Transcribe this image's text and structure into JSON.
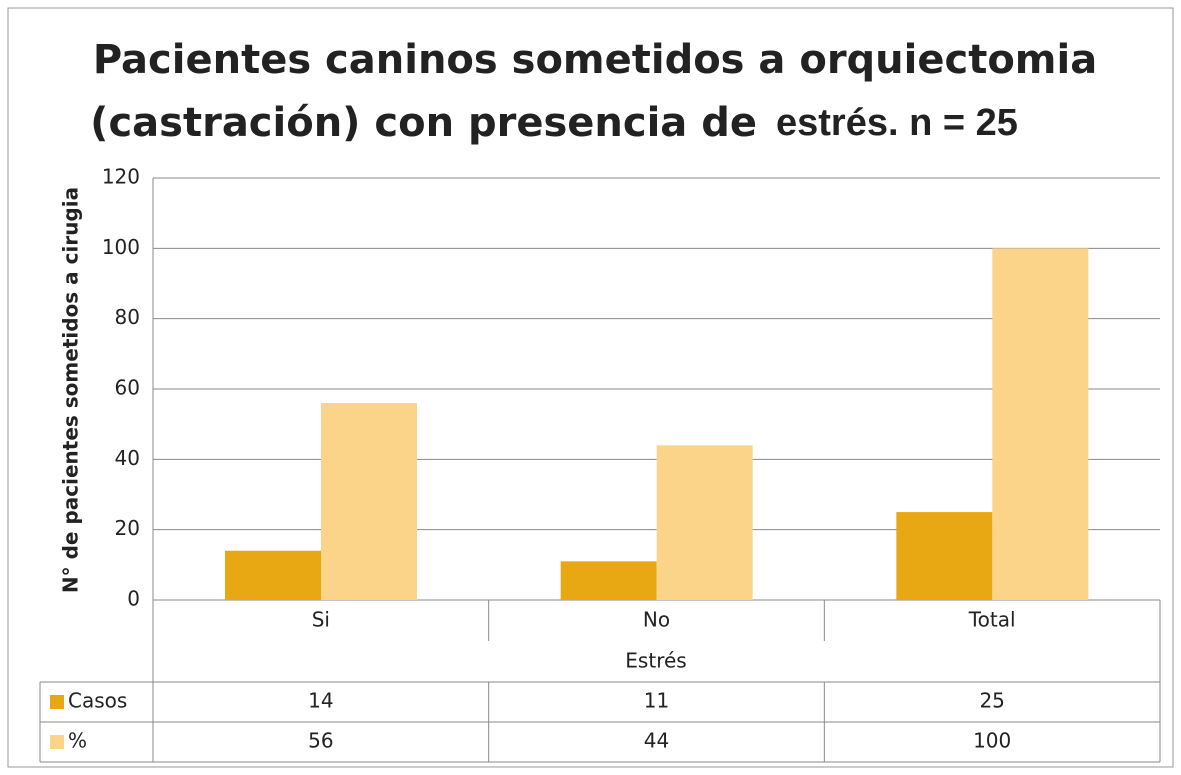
{
  "chart_data": {
    "type": "bar",
    "title": [
      "Pacientes caninos sometidos a orquiectomia",
      "(castración) con presencia de",
      "estrés. n = 25"
    ],
    "x_label": "Estrés",
    "y_label": "N° de pacientes sometidos a cirugia",
    "categories": [
      "Si",
      "No",
      "Total"
    ],
    "series": [
      {
        "name": "Casos",
        "color": "#e8a814",
        "values": [
          14,
          11,
          25
        ]
      },
      {
        "name": "%",
        "color": "#fbd48a",
        "values": [
          56,
          44,
          100
        ]
      }
    ],
    "ylim": [
      0,
      120
    ],
    "yticks": [
      0,
      20,
      40,
      60,
      80,
      100,
      120
    ],
    "grid": true
  }
}
